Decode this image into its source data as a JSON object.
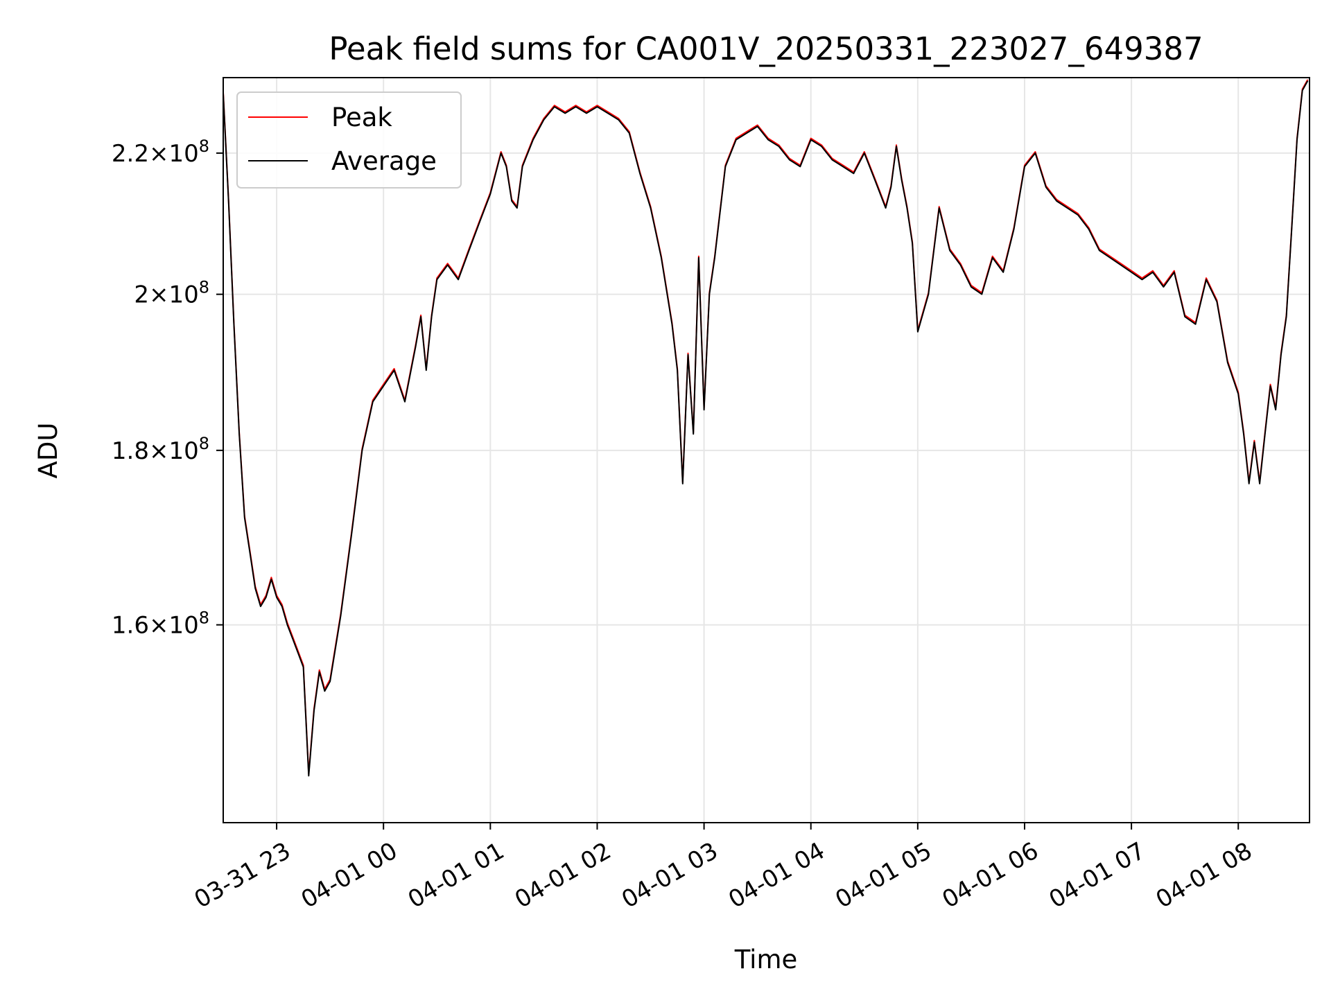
{
  "chart_data": {
    "type": "line",
    "title": "Peak field sums for CA001V_20250331_223027_649387",
    "xlabel": "Time",
    "ylabel": "ADU",
    "y_scale": "log",
    "grid": true,
    "legend_position": "top-left",
    "xlim": [
      "2025-03-31 22:30",
      "2025-04-01 08:40"
    ],
    "ylim": [
      140000000,
      231500000
    ],
    "x_ticks": [
      {
        "value": "2025-03-31 23:00",
        "label": "03-31 23"
      },
      {
        "value": "2025-04-01 00:00",
        "label": "04-01 00"
      },
      {
        "value": "2025-04-01 01:00",
        "label": "04-01 01"
      },
      {
        "value": "2025-04-01 02:00",
        "label": "04-01 02"
      },
      {
        "value": "2025-04-01 03:00",
        "label": "04-01 03"
      },
      {
        "value": "2025-04-01 04:00",
        "label": "04-01 04"
      },
      {
        "value": "2025-04-01 05:00",
        "label": "04-01 05"
      },
      {
        "value": "2025-04-01 06:00",
        "label": "04-01 06"
      },
      {
        "value": "2025-04-01 07:00",
        "label": "04-01 07"
      },
      {
        "value": "2025-04-01 08:00",
        "label": "04-01 08"
      }
    ],
    "y_ticks": [
      {
        "value": 160000000,
        "mantissa": "1.6",
        "base": "10",
        "exp": "8"
      },
      {
        "value": 180000000,
        "mantissa": "1.8",
        "base": "10",
        "exp": "8"
      },
      {
        "value": 200000000,
        "mantissa": "2",
        "base": "10",
        "exp": "8"
      },
      {
        "value": 220000000,
        "mantissa": "2.2",
        "base": "10",
        "exp": "8"
      }
    ],
    "series": [
      {
        "name": "Peak",
        "color": "#ff0000"
      },
      {
        "name": "Average",
        "color": "#000000"
      }
    ],
    "x": [
      "2025-03-31 22:30",
      "2025-03-31 22:33",
      "2025-03-31 22:36",
      "2025-03-31 22:39",
      "2025-03-31 22:42",
      "2025-03-31 22:45",
      "2025-03-31 22:48",
      "2025-03-31 22:51",
      "2025-03-31 22:54",
      "2025-03-31 22:57",
      "2025-03-31 23:00",
      "2025-03-31 23:03",
      "2025-03-31 23:06",
      "2025-03-31 23:09",
      "2025-03-31 23:12",
      "2025-03-31 23:15",
      "2025-03-31 23:18",
      "2025-03-31 23:21",
      "2025-03-31 23:24",
      "2025-03-31 23:27",
      "2025-03-31 23:30",
      "2025-03-31 23:36",
      "2025-03-31 23:42",
      "2025-03-31 23:48",
      "2025-03-31 23:54",
      "2025-04-01 00:00",
      "2025-04-01 00:06",
      "2025-04-01 00:12",
      "2025-04-01 00:18",
      "2025-04-01 00:21",
      "2025-04-01 00:24",
      "2025-04-01 00:27",
      "2025-04-01 00:30",
      "2025-04-01 00:36",
      "2025-04-01 00:42",
      "2025-04-01 00:48",
      "2025-04-01 00:54",
      "2025-04-01 01:00",
      "2025-04-01 01:06",
      "2025-04-01 01:09",
      "2025-04-01 01:12",
      "2025-04-01 01:15",
      "2025-04-01 01:18",
      "2025-04-01 01:24",
      "2025-04-01 01:30",
      "2025-04-01 01:36",
      "2025-04-01 01:42",
      "2025-04-01 01:48",
      "2025-04-01 01:54",
      "2025-04-01 02:00",
      "2025-04-01 02:06",
      "2025-04-01 02:12",
      "2025-04-01 02:18",
      "2025-04-01 02:24",
      "2025-04-01 02:30",
      "2025-04-01 02:36",
      "2025-04-01 02:42",
      "2025-04-01 02:45",
      "2025-04-01 02:48",
      "2025-04-01 02:51",
      "2025-04-01 02:54",
      "2025-04-01 02:57",
      "2025-04-01 03:00",
      "2025-04-01 03:03",
      "2025-04-01 03:06",
      "2025-04-01 03:12",
      "2025-04-01 03:18",
      "2025-04-01 03:24",
      "2025-04-01 03:30",
      "2025-04-01 03:36",
      "2025-04-01 03:42",
      "2025-04-01 03:48",
      "2025-04-01 03:54",
      "2025-04-01 04:00",
      "2025-04-01 04:06",
      "2025-04-01 04:12",
      "2025-04-01 04:18",
      "2025-04-01 04:24",
      "2025-04-01 04:30",
      "2025-04-01 04:36",
      "2025-04-01 04:42",
      "2025-04-01 04:45",
      "2025-04-01 04:48",
      "2025-04-01 04:51",
      "2025-04-01 04:54",
      "2025-04-01 04:57",
      "2025-04-01 05:00",
      "2025-04-01 05:06",
      "2025-04-01 05:12",
      "2025-04-01 05:18",
      "2025-04-01 05:24",
      "2025-04-01 05:30",
      "2025-04-01 05:36",
      "2025-04-01 05:42",
      "2025-04-01 05:48",
      "2025-04-01 05:54",
      "2025-04-01 06:00",
      "2025-04-01 06:06",
      "2025-04-01 06:12",
      "2025-04-01 06:18",
      "2025-04-01 06:24",
      "2025-04-01 06:30",
      "2025-04-01 06:36",
      "2025-04-01 06:42",
      "2025-04-01 06:48",
      "2025-04-01 06:54",
      "2025-04-01 07:00",
      "2025-04-01 07:06",
      "2025-04-01 07:12",
      "2025-04-01 07:18",
      "2025-04-01 07:24",
      "2025-04-01 07:30",
      "2025-04-01 07:36",
      "2025-04-01 07:42",
      "2025-04-01 07:48",
      "2025-04-01 07:54",
      "2025-04-01 08:00",
      "2025-04-01 08:03",
      "2025-04-01 08:06",
      "2025-04-01 08:09",
      "2025-04-01 08:12",
      "2025-04-01 08:15",
      "2025-04-01 08:18",
      "2025-04-01 08:21",
      "2025-04-01 08:24",
      "2025-04-01 08:27",
      "2025-04-01 08:30",
      "2025-04-01 08:33",
      "2025-04-01 08:36",
      "2025-04-01 08:39"
    ],
    "y_average": [
      229.0,
      213.0,
      196.0,
      182.0,
      172.0,
      168.0,
      164.0,
      162.0,
      163.0,
      165.0,
      163.0,
      162.0,
      160.0,
      158.5,
      157.0,
      155.5,
      144.5,
      151.0,
      155.0,
      153.0,
      154.0,
      161.0,
      170.0,
      180.0,
      186.0,
      188.0,
      190.0,
      186.0,
      193.0,
      197.0,
      190.0,
      197.0,
      202.0,
      204.0,
      202.0,
      206.0,
      210.0,
      214.0,
      220.0,
      218.0,
      213.0,
      212.0,
      218.0,
      222.0,
      225.0,
      227.0,
      226.0,
      227.0,
      226.0,
      227.0,
      226.0,
      225.0,
      223.0,
      217.0,
      212.0,
      205.0,
      196.0,
      190.0,
      176.0,
      192.0,
      182.0,
      205.0,
      185.0,
      200.0,
      205.0,
      218.0,
      222.0,
      223.0,
      224.0,
      222.0,
      221.0,
      219.0,
      218.0,
      222.0,
      221.0,
      219.0,
      218.0,
      217.0,
      220.0,
      216.0,
      212.0,
      215.0,
      221.0,
      216.0,
      212.0,
      207.0,
      195.0,
      200.0,
      212.0,
      206.0,
      204.0,
      201.0,
      200.0,
      205.0,
      203.0,
      209.0,
      218.0,
      220.0,
      215.0,
      213.0,
      212.0,
      211.0,
      209.0,
      206.0,
      205.0,
      204.0,
      203.0,
      202.0,
      203.0,
      201.0,
      203.0,
      197.0,
      196.0,
      202.0,
      199.0,
      191.0,
      187.0,
      182.0,
      176.0,
      181.0,
      176.0,
      182.0,
      188.0,
      185.0,
      192.0,
      197.0,
      209.0,
      222.0,
      229.5,
      231.0
    ],
    "y_peak": [
      229.2,
      213.2,
      196.2,
      182.2,
      172.2,
      168.2,
      164.2,
      162.2,
      163.2,
      165.2,
      163.2,
      162.2,
      160.2,
      158.7,
      157.2,
      155.7,
      144.7,
      151.2,
      155.2,
      153.2,
      154.2,
      161.2,
      170.2,
      180.2,
      186.2,
      188.2,
      190.2,
      186.2,
      193.2,
      197.2,
      190.2,
      197.2,
      202.2,
      204.2,
      202.2,
      206.2,
      210.2,
      214.2,
      220.2,
      218.2,
      213.2,
      212.2,
      218.2,
      222.2,
      225.2,
      227.2,
      226.2,
      227.2,
      226.2,
      227.2,
      226.2,
      225.2,
      223.2,
      217.2,
      212.2,
      205.2,
      196.2,
      190.2,
      176.2,
      192.2,
      182.2,
      205.2,
      185.2,
      200.2,
      205.2,
      218.2,
      222.2,
      223.2,
      224.2,
      222.2,
      221.2,
      219.2,
      218.2,
      222.2,
      221.2,
      219.2,
      218.2,
      217.2,
      220.2,
      216.2,
      212.2,
      215.2,
      221.2,
      216.2,
      212.2,
      207.2,
      195.2,
      200.2,
      212.2,
      206.2,
      204.2,
      201.2,
      200.2,
      205.2,
      203.2,
      209.2,
      218.2,
      220.2,
      215.2,
      213.2,
      212.2,
      211.2,
      209.2,
      206.2,
      205.2,
      204.2,
      203.2,
      202.2,
      203.2,
      201.2,
      203.2,
      197.2,
      196.2,
      202.2,
      199.2,
      191.2,
      187.2,
      182.2,
      176.2,
      181.2,
      176.2,
      182.2,
      188.2,
      185.2,
      192.2,
      197.2,
      209.2,
      222.2,
      229.7,
      231.2
    ],
    "y_unit_multiplier": 1000000
  }
}
